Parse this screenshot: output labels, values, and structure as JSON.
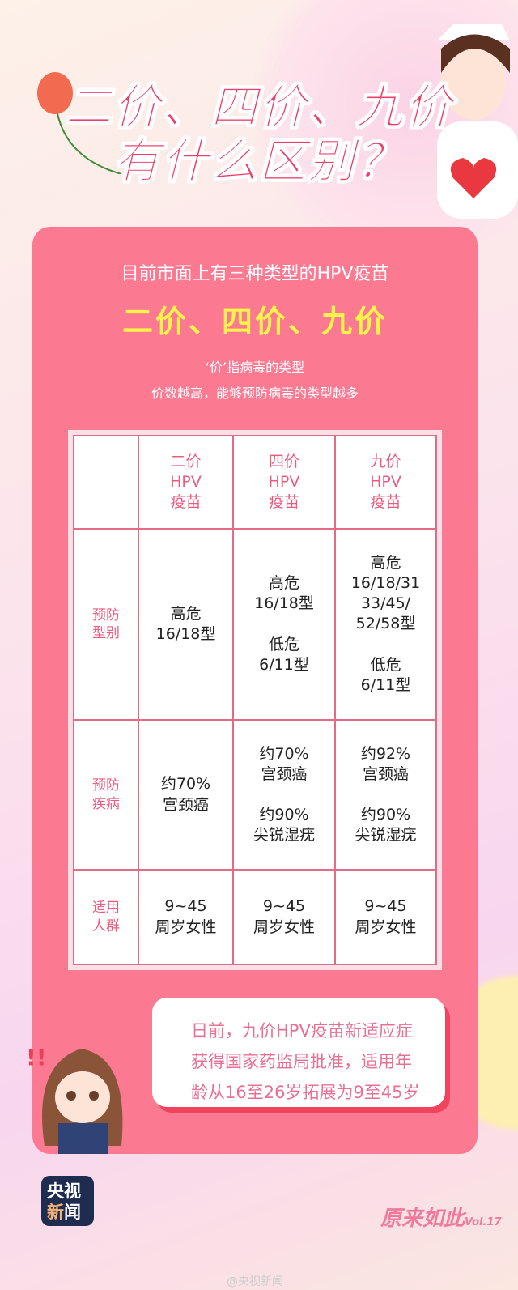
{
  "title": {
    "line1": "二价、四价、九价",
    "line2": "有什么区别？"
  },
  "card": {
    "intro": "目前市面上有三种类型的HPV疫苗",
    "types": "二价、四价、九价",
    "note1": "‘价’指病毒的类型",
    "note2": "价数越高，能够预防病毒的类型越多"
  },
  "table": {
    "headers": [
      "二价\nHPV\n疫苗",
      "四价\nHPV\n疫苗",
      "九价\nHPV\n疫苗"
    ],
    "rows": [
      {
        "label": "预防\n型别",
        "cells": [
          "高危\n16/18型",
          "高危\n16/18型\n\n低危\n6/11型",
          "高危\n16/18/31\n33/45/\n52/58型\n\n低危\n6/11型"
        ]
      },
      {
        "label": "预防\n疾病",
        "cells": [
          "约70%\n宫颈癌",
          "约70%\n宫颈癌\n\n约90%\n尖锐湿疣",
          "约92%\n宫颈癌\n\n约90%\n尖锐湿疣"
        ]
      },
      {
        "label": "适用\n人群",
        "cells": [
          "9~45\n周岁女性",
          "9~45\n周岁女性",
          "9~45\n周岁女性"
        ]
      }
    ]
  },
  "bubble": {
    "lines": [
      "日前，九价HPV疫苗新适应症",
      "获得国家药监局批准，适用年",
      "龄从16至26岁拓展为9至45岁"
    ]
  },
  "footer": {
    "logo_line1": "央视",
    "logo_line2a": "新",
    "logo_line2b": "闻",
    "brand": "原来如此",
    "vol": "Vol.17",
    "weibo": "@央视新闻"
  },
  "colors": {
    "card": "#fb7a92",
    "title": "#ee3f6b",
    "highlight": "#fff24a",
    "table_border": "#e36b85"
  }
}
